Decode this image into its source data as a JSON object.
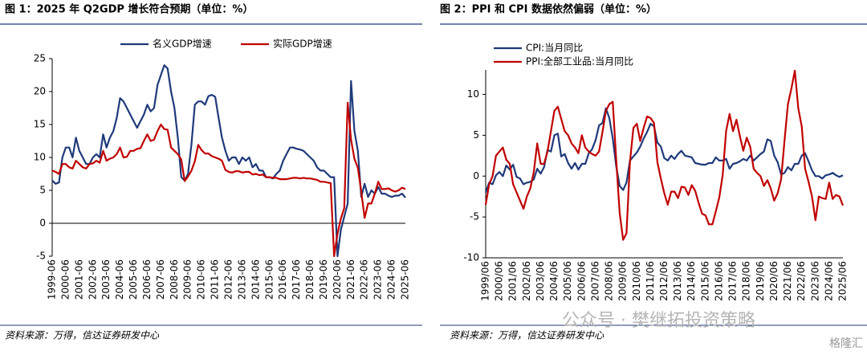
{
  "chart_data": [
    {
      "type": "line",
      "title": "图 1：2025 年 Q2GDP 增长符合预期（单位：%）",
      "source": "资料来源：万得，信达证券研发中心",
      "categories": [
        "1999-06",
        null,
        null,
        null,
        "2000-06",
        null,
        null,
        null,
        "2001-06",
        null,
        null,
        null,
        "2002-06",
        null,
        null,
        null,
        "2003-06",
        null,
        null,
        null,
        "2004-06",
        null,
        null,
        null,
        "2005-06",
        null,
        null,
        null,
        "2006-06",
        null,
        null,
        null,
        "2007-06",
        null,
        null,
        null,
        "2008-06",
        null,
        null,
        null,
        "2009-06",
        null,
        null,
        null,
        "2010-06",
        null,
        null,
        null,
        "2011-06",
        null,
        null,
        null,
        "2012-06",
        null,
        null,
        null,
        "2013-06",
        null,
        null,
        null,
        "2014-06",
        null,
        null,
        null,
        "2015-06",
        null,
        null,
        null,
        "2016-06",
        null,
        null,
        null,
        "2017-06",
        null,
        null,
        null,
        "2018-06",
        null,
        null,
        null,
        "2019-06",
        null,
        null,
        null,
        "2020-06",
        null,
        null,
        null,
        "2021-06",
        null,
        null,
        null,
        "2022-06",
        null,
        null,
        null,
        "2023-06",
        null,
        null,
        null,
        "2024-06",
        null,
        null,
        null,
        "2025-06"
      ],
      "series": [
        {
          "name": "名义GDP增速",
          "color": "#1f3a7a",
          "values": [
            6.5,
            6.0,
            6.2,
            10,
            11.5,
            11.5,
            10,
            13,
            11,
            10,
            9,
            9,
            10,
            10.5,
            10,
            13.5,
            11.5,
            13,
            14,
            16,
            19,
            18.5,
            17.5,
            16.5,
            15.5,
            14.5,
            15.5,
            16.5,
            18,
            17,
            17.5,
            21,
            22.5,
            24,
            23.5,
            20,
            17.5,
            13,
            7,
            6.5,
            7.5,
            12,
            18,
            18.5,
            18.5,
            18,
            19.3,
            19.5,
            19.2,
            16,
            13,
            11,
            9.5,
            10,
            10,
            9,
            10,
            9.5,
            10,
            8.5,
            9,
            8,
            8,
            7,
            7,
            6.8,
            7.5,
            8,
            9.5,
            10.5,
            11.5,
            11.5,
            11.3,
            11.2,
            11,
            10.5,
            10,
            9.5,
            8.5,
            8,
            8,
            7.5,
            7,
            7,
            -5,
            -1,
            1,
            3,
            21.6,
            14,
            11,
            4,
            6,
            4,
            5,
            4.5,
            5.5,
            4.5,
            4.5,
            4.2,
            4,
            4.2,
            4.2,
            4.5,
            3.9
          ]
        },
        {
          "name": "实际GDP增速",
          "color": "#c00000",
          "values": [
            8,
            7.8,
            7.5,
            9,
            9,
            8.5,
            8.3,
            9.5,
            9,
            8.5,
            8.3,
            9,
            9.1,
            9.5,
            9.2,
            11,
            9.5,
            9.8,
            10,
            10.5,
            11.5,
            10,
            10.1,
            11,
            11,
            11.3,
            11.4,
            12.5,
            13.5,
            12.5,
            12.7,
            14,
            15,
            14.3,
            14.2,
            11.5,
            11,
            10.5,
            9.7,
            6.4,
            7.1,
            8,
            9.4,
            11.9,
            11.1,
            10.6,
            10.6,
            10.2,
            10,
            9.8,
            9.5,
            8.1,
            7.8,
            7.7,
            7.9,
            7.9,
            7.7,
            7.8,
            7.8,
            7.4,
            7.5,
            7.3,
            7.4,
            7,
            7,
            6.9,
            6.9,
            6.7,
            6.7,
            6.7,
            6.8,
            6.9,
            6.9,
            6.8,
            6.9,
            6.8,
            6.8,
            6.7,
            6.6,
            6.3,
            6.3,
            6.2,
            6.1,
            -5,
            -1.6,
            0.7,
            2.3,
            18.3,
            12.7,
            9.8,
            8.4,
            4.8,
            0.8,
            3.0,
            3.0,
            4.5,
            6.3,
            5.2,
            5.2,
            5.3,
            5.0,
            4.8,
            5.0,
            5.4,
            5.2
          ]
        }
      ],
      "ylim": [
        -5,
        25
      ],
      "yticks": [
        -5,
        0,
        5,
        10,
        15,
        20,
        25
      ],
      "zero_line": true,
      "legend": "top"
    },
    {
      "type": "line",
      "title": "图 2：PPI 和 CPI 数据依然偏弱（单位：%）",
      "source": "资料来源：万得，信达证券研发中心",
      "categories": [
        "1999/06",
        null,
        null,
        null,
        "2000/06",
        null,
        null,
        null,
        "2001/06",
        null,
        null,
        null,
        "2002/06",
        null,
        null,
        null,
        "2003/06",
        null,
        null,
        null,
        "2004/06",
        null,
        null,
        null,
        "2005/06",
        null,
        null,
        null,
        "2006/06",
        null,
        null,
        null,
        "2007/06",
        null,
        null,
        null,
        "2008/06",
        null,
        null,
        null,
        "2009/06",
        null,
        null,
        null,
        "2010/06",
        null,
        null,
        null,
        "2011/06",
        null,
        null,
        null,
        "2012/06",
        null,
        null,
        null,
        "2013/06",
        null,
        null,
        null,
        "2014/06",
        null,
        null,
        null,
        "2015/06",
        null,
        null,
        null,
        "2016/06",
        null,
        null,
        null,
        "2017/06",
        null,
        null,
        null,
        "2018/06",
        null,
        null,
        null,
        "2019/06",
        null,
        null,
        null,
        "2020/06",
        null,
        null,
        null,
        "2021/06",
        null,
        null,
        null,
        "2022/06",
        null,
        null,
        null,
        "2023/06",
        null,
        null,
        null,
        "2024/06",
        null,
        null,
        null,
        "2025/06"
      ],
      "series": [
        {
          "name": "CPI:当月同比",
          "color": "#1f3a7a",
          "values": [
            -2,
            -0.8,
            -1,
            0.1,
            0.5,
            0,
            1.3,
            0.8,
            1.4,
            -0.1,
            -0.3,
            -1,
            -0.8,
            -0.7,
            -0.4,
            0.9,
            0.3,
            1.1,
            3.2,
            3,
            5,
            5.2,
            2.4,
            2.7,
            1.6,
            0.9,
            1.6,
            0.8,
            1.5,
            1.5,
            2.8,
            3.3,
            4.4,
            6.2,
            6.5,
            8.3,
            7.1,
            4.6,
            1.2,
            -1.2,
            -1.7,
            -0.8,
            1.9,
            2.4,
            2.9,
            3.6,
            4.6,
            5.4,
            6.4,
            6.1,
            4.1,
            3.6,
            2.2,
            1.9,
            2.5,
            2.1,
            2.7,
            3.1,
            2.5,
            2.4,
            2.3,
            1.6,
            1.5,
            1.4,
            1.4,
            1.6,
            1.6,
            2.3,
            1.9,
            1.9,
            2.1,
            0.9,
            1.5,
            1.6,
            1.8,
            2.1,
            1.9,
            2.5,
            1.9,
            2.3,
            2.7,
            3.0,
            4.5,
            4.3,
            2.5,
            1.7,
            0.2,
            0.4,
            1.1,
            0.7,
            1.5,
            1.5,
            2.5,
            2.8,
            1.8,
            0.7,
            0,
            0,
            -0.3,
            0.1,
            0.2,
            0.4,
            0.1,
            -0.1,
            0.1
          ]
        },
        {
          "name": "PPI:全部工业品:当月同比",
          "color": "#c00000",
          "values": [
            -3.5,
            -1,
            0,
            2.5,
            3,
            3.5,
            2,
            1.5,
            -1,
            -2,
            -3,
            -4,
            -2.5,
            -1.5,
            0.5,
            4,
            1.5,
            1.5,
            3,
            5.5,
            8,
            8.5,
            7,
            5.5,
            5,
            4,
            3.5,
            2.8,
            5,
            3.5,
            3,
            2.7,
            2.5,
            3,
            5.4,
            8,
            8.8,
            9.1,
            2,
            -4.5,
            -7.8,
            -7,
            1.7,
            5.9,
            6.4,
            4.3,
            5.9,
            7.3,
            7.1,
            6.5,
            1.7,
            -0.3,
            -2.1,
            -3.5,
            -1.9,
            -1.9,
            -2.7,
            -1.3,
            -1.4,
            -2.3,
            -1.1,
            -1.8,
            -3.3,
            -4.6,
            -4.8,
            -5.9,
            -5.9,
            -4.3,
            -2.6,
            0.1,
            5.5,
            7.6,
            5.5,
            6.9,
            4.9,
            3.1,
            4.7,
            3.6,
            0.9,
            0.4,
            0,
            -1.2,
            -0.5,
            -1.5,
            -3,
            -2.1,
            -0.4,
            4.4,
            8.8,
            10.7,
            12.9,
            8.3,
            6.1,
            0.9,
            -0.7,
            -2.5,
            -5.4,
            -2.5,
            -2.7,
            -2.8,
            -0.8,
            -2.8,
            -2.3,
            -2.5,
            -3.6
          ]
        }
      ],
      "ylim": [
        -10,
        13
      ],
      "yticks": [
        -10,
        -5,
        0,
        5,
        10
      ],
      "zero_line": false,
      "legend": "top-left"
    }
  ],
  "watermark": "公众号 · 樊继拓投资策略",
  "logo": "格隆汇"
}
